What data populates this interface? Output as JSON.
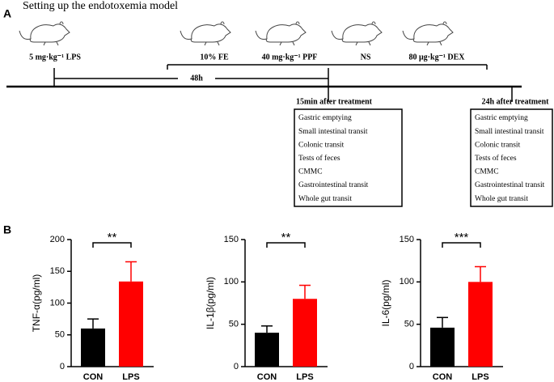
{
  "figure": {
    "panel_a_label": "A",
    "panel_b_label": "B",
    "title": "Setting up the endotoxemia model",
    "model_dose": "5 mg·kg⁻¹ LPS",
    "treatments": [
      "10% FE",
      "40 mg·kg⁻¹ PPF",
      "NS",
      "80 μg·kg⁻¹ DEX"
    ],
    "interval": "48h",
    "timepoints": [
      {
        "label": "15min after treatment",
        "items": [
          "Gastric emptying",
          "Small intestinal transit",
          "Colonic transit",
          "Tests of feces",
          "CMMC",
          "Gastrointestinal transit",
          "Whole gut transit"
        ]
      },
      {
        "label": "24h after treatment",
        "items": [
          "Gastric emptying",
          "Small intestinal transit",
          "Colonic transit",
          "Tests of feces",
          "CMMC",
          "Gastrointestinal transit",
          "Whole gut transit"
        ]
      }
    ]
  },
  "chart_data": [
    {
      "type": "bar",
      "y_label": "TNF-α(pg/ml)",
      "categories": [
        "CON",
        "LPS"
      ],
      "values": [
        60,
        134
      ],
      "errors": [
        15,
        31
      ],
      "colors": [
        "#000000",
        "#ff0000"
      ],
      "ylim": [
        0,
        200
      ],
      "yticks": [
        0,
        50,
        100,
        150,
        200
      ],
      "significance": "**"
    },
    {
      "type": "bar",
      "y_label": "IL-1β(pg/ml)",
      "categories": [
        "CON",
        "LPS"
      ],
      "values": [
        40,
        80
      ],
      "errors": [
        8,
        16
      ],
      "colors": [
        "#000000",
        "#ff0000"
      ],
      "ylim": [
        0,
        150
      ],
      "yticks": [
        0,
        50,
        100,
        150
      ],
      "significance": "**"
    },
    {
      "type": "bar",
      "y_label": "IL-6(pg/ml)",
      "categories": [
        "CON",
        "LPS"
      ],
      "values": [
        46,
        100
      ],
      "errors": [
        12,
        18
      ],
      "colors": [
        "#000000",
        "#ff0000"
      ],
      "ylim": [
        0,
        150
      ],
      "yticks": [
        0,
        50,
        100,
        150
      ],
      "significance": "***"
    }
  ]
}
